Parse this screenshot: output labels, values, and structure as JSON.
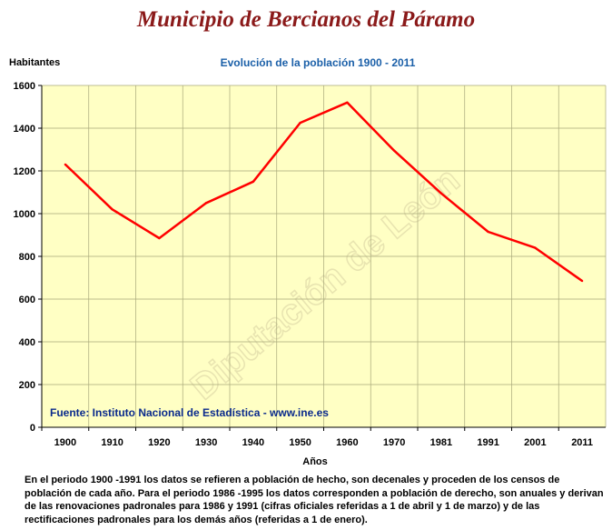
{
  "header": {
    "title": "Municipio de Bercianos del Páramo"
  },
  "chart_data": {
    "type": "line",
    "title": "Evolución de la población 1900 - 2011",
    "ylabel": "Habitantes",
    "xlabel": "Años",
    "categories": [
      "1900",
      "1910",
      "1920",
      "1930",
      "1940",
      "1950",
      "1960",
      "1970",
      "1981",
      "1991",
      "2001",
      "2011"
    ],
    "values": [
      1230,
      1020,
      885,
      1050,
      1150,
      1425,
      1520,
      1295,
      1095,
      915,
      840,
      685
    ],
    "ylim": [
      0,
      1600
    ],
    "yticks": [
      0,
      200,
      400,
      600,
      800,
      1000,
      1200,
      1400,
      1600
    ],
    "grid": true,
    "source": "Fuente: Instituto Nacional de Estadística - www.ine.es",
    "watermark": "Diputación de León",
    "colors": {
      "line": "#ff0000",
      "plot_bg": "#ffffc4",
      "grid": "#a8a87a",
      "title": "#1a5fa8",
      "source": "#0a2a8c",
      "watermark": "#e8e4b0"
    }
  },
  "footer": {
    "note": "En el periodo 1900 -1991 los datos se refieren a población de hecho, son decenales y proceden de los censos de población de cada año. Para el periodo 1986 -1995 los datos corresponden a población de derecho, son anuales y derivan de las renovaciones padronales para 1986 y 1991 (cifras oficiales referidas a 1 de abril y 1 de marzo) y de las rectificaciones padronales para los demás años (referidas a 1 de enero)."
  }
}
